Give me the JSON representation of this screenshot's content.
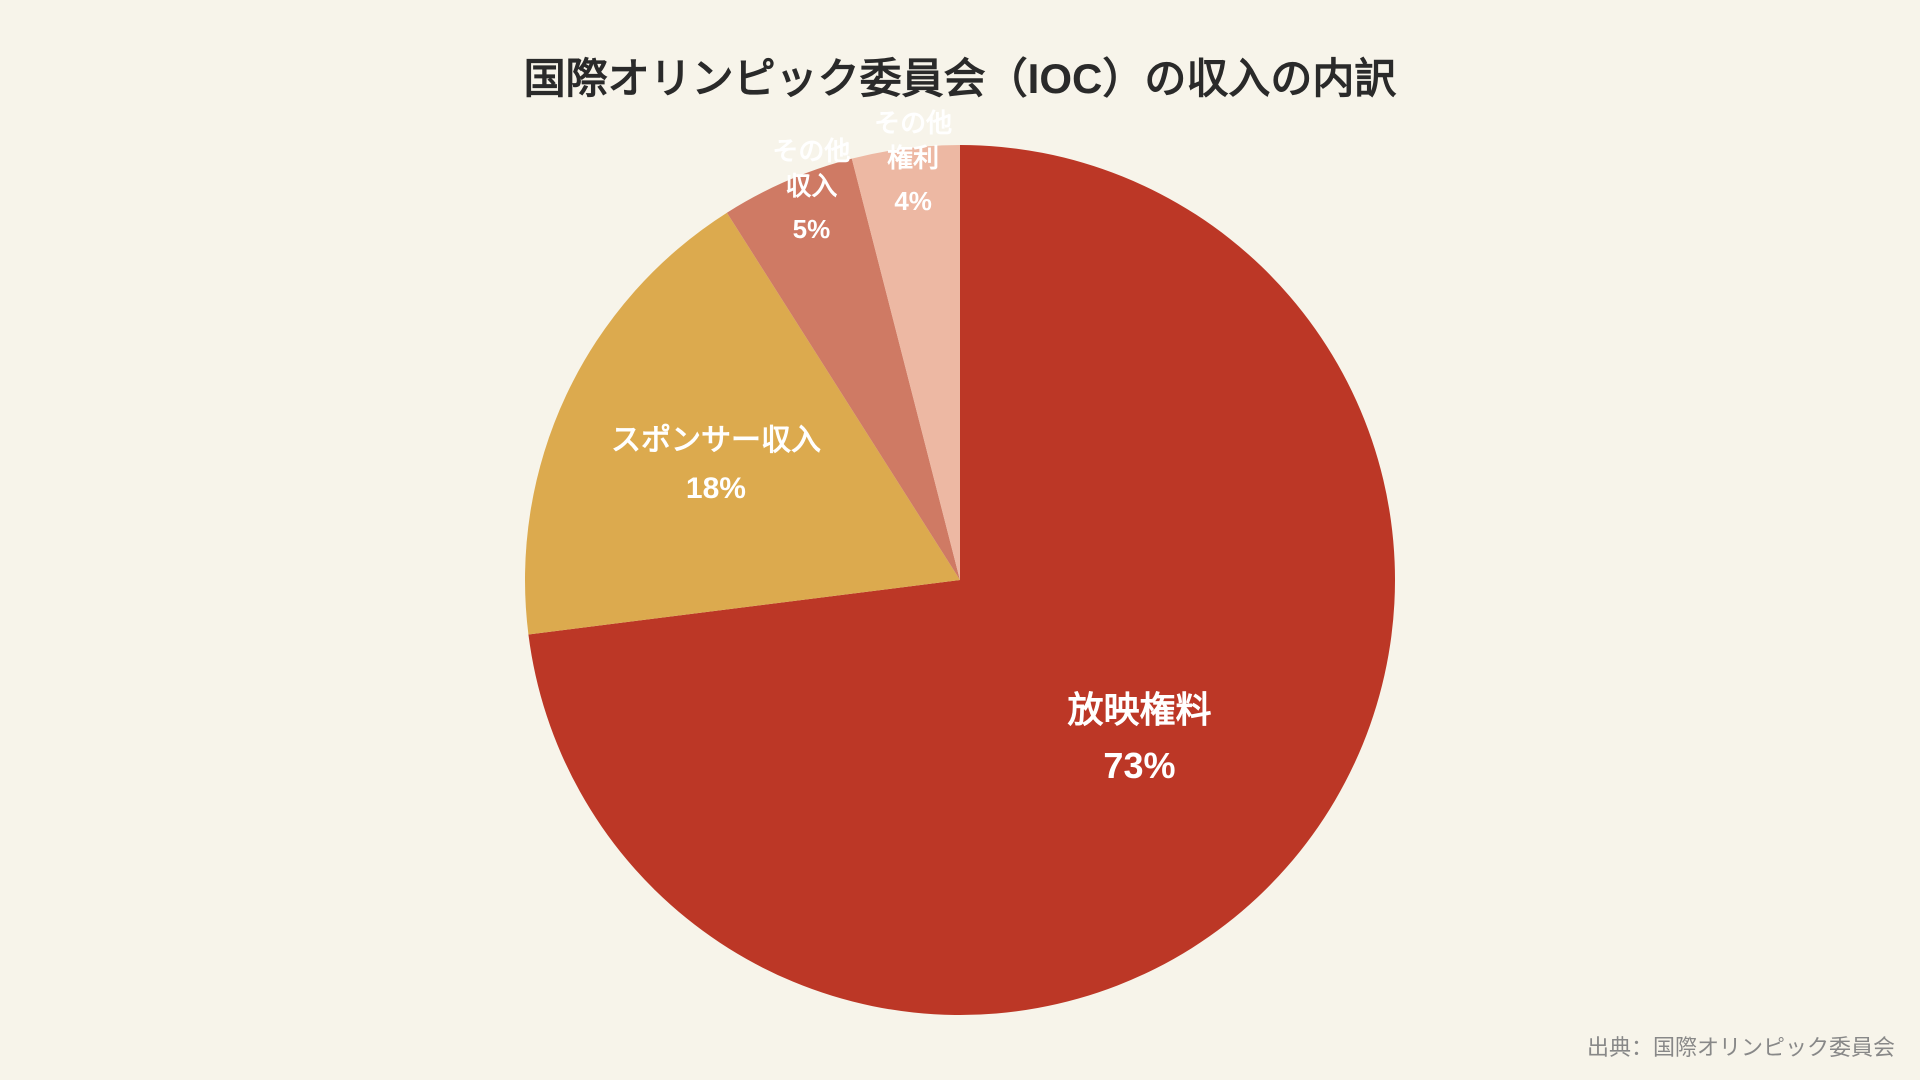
{
  "title": "国際オリンピック委員会（IOC）の収入の内訳",
  "source": "出典：国際オリンピック委員会",
  "chart": {
    "type": "pie",
    "background_color": "#f7f4ea",
    "title_color": "#2a2a2a",
    "title_fontsize": 42,
    "source_color": "#888888",
    "source_fontsize": 22,
    "label_color": "#ffffff",
    "radius": 435,
    "slices": [
      {
        "key": "broadcasting",
        "label": "放映権料",
        "value": 73,
        "pct": "73%",
        "color": "#bc3726",
        "label_fontsize": 36
      },
      {
        "key": "sponsor",
        "label": "スポンサー収入",
        "value": 18,
        "pct": "18%",
        "color": "#dcaa4e",
        "label_fontsize": 30
      },
      {
        "key": "other_income",
        "label": "その他\n収入",
        "value": 5,
        "pct": "5%",
        "color": "#cf7a64",
        "label_fontsize": 26
      },
      {
        "key": "other_rights",
        "label": "その他\n権利",
        "value": 4,
        "pct": "4%",
        "color": "#edb8a3",
        "label_fontsize": 26
      }
    ]
  }
}
